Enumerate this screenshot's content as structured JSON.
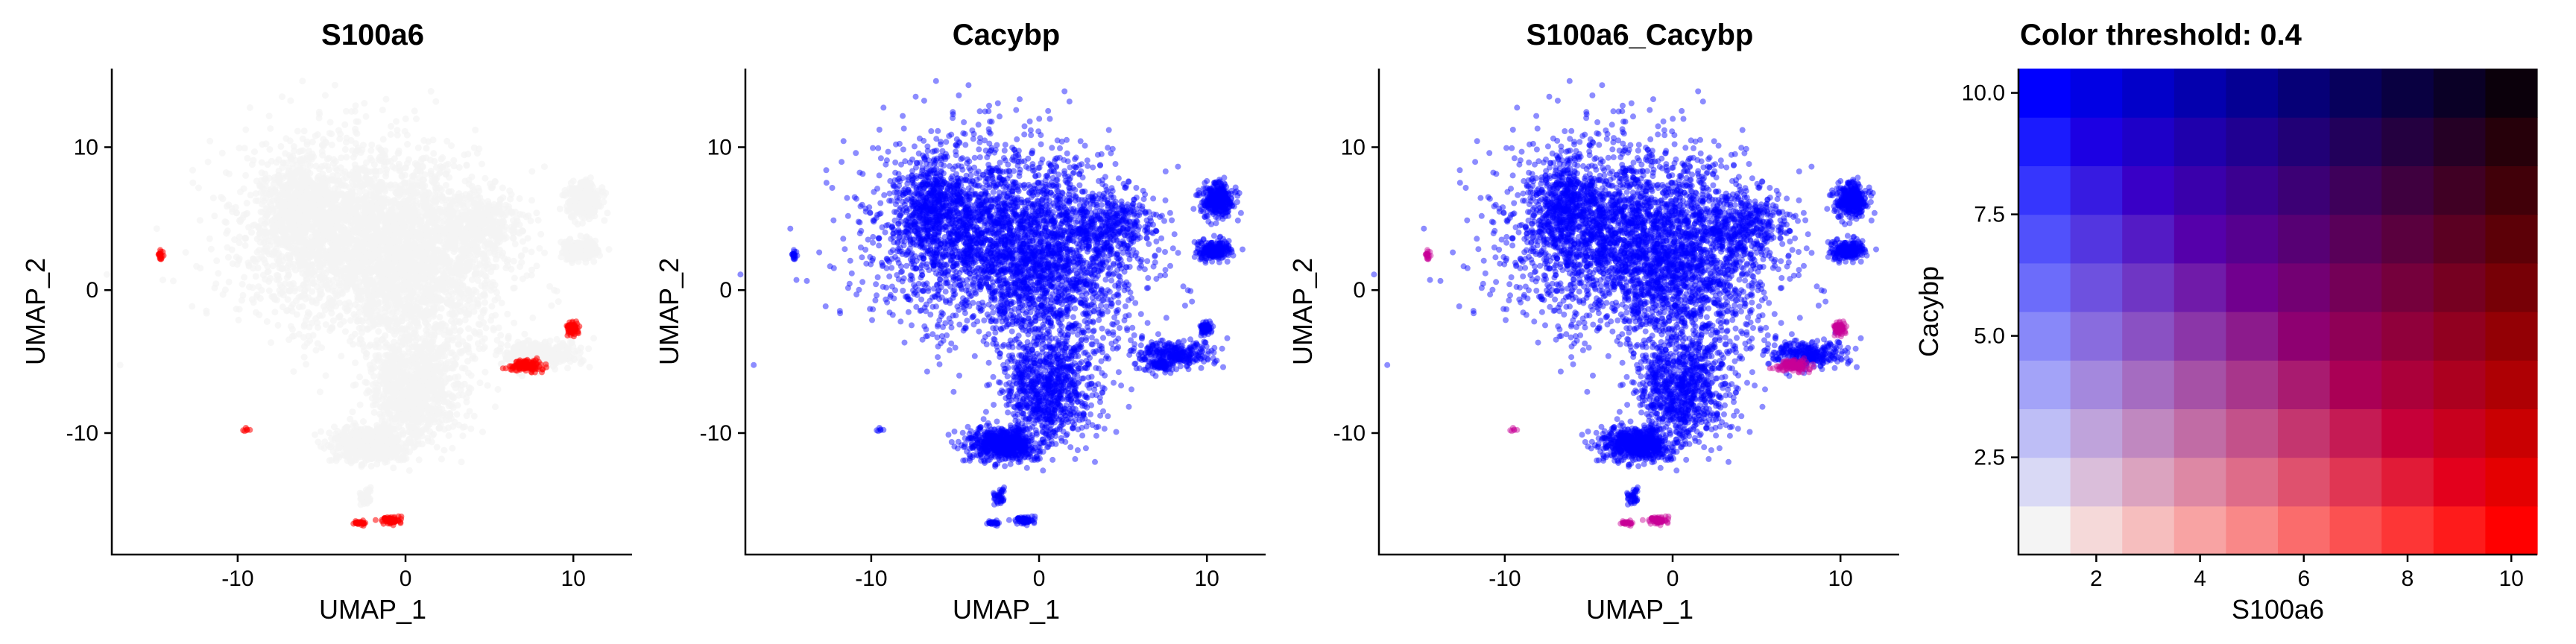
{
  "chart_data": [
    {
      "type": "scatter",
      "title": "S100a6",
      "xlabel": "UMAP_1",
      "ylabel": "UMAP_2",
      "xticks": [
        -10,
        0,
        10
      ],
      "yticks": [
        -10,
        0,
        10
      ],
      "xlim": [
        -17.5,
        13.5
      ],
      "ylim": [
        -18.5,
        15.5
      ],
      "colors": {
        "low": "#f4f4f4",
        "high": "#ff0000",
        "blend": "#b000b0"
      },
      "color_by": "S100a6",
      "clusters": [
        {
          "cx": -3.0,
          "cy": 4.0,
          "sx": 6.5,
          "sy": 6.0,
          "n": 2200,
          "a": 0.05,
          "b": 0
        },
        {
          "cx": 0.5,
          "cy": 1.5,
          "sx": 5.0,
          "sy": 5.5,
          "n": 1400,
          "a": 0.05,
          "b": 0
        },
        {
          "cx": 0.5,
          "cy": -7.0,
          "sx": 2.5,
          "sy": 3.5,
          "n": 900,
          "a": 0.05,
          "b": 0
        },
        {
          "cx": -2.2,
          "cy": -10.8,
          "sx": 1.8,
          "sy": 1.0,
          "n": 700,
          "a": 0.05,
          "b": 0
        },
        {
          "cx": -6.5,
          "cy": 6.0,
          "sx": 1.8,
          "sy": 3.0,
          "n": 450,
          "a": 0.05,
          "b": 0
        },
        {
          "cx": 4.5,
          "cy": 4.5,
          "sx": 2.5,
          "sy": 2.0,
          "n": 300,
          "a": 0.05,
          "b": 0
        },
        {
          "cx": 8.0,
          "cy": -4.5,
          "sx": 2.2,
          "sy": 0.9,
          "n": 300,
          "a": 0.1,
          "b": 0
        },
        {
          "cx": 10.6,
          "cy": 6.3,
          "sx": 0.9,
          "sy": 1.1,
          "n": 350,
          "a": 0.05,
          "b": 0
        },
        {
          "cx": 10.4,
          "cy": 2.8,
          "sx": 0.9,
          "sy": 0.6,
          "n": 250,
          "a": 0.05,
          "b": 0
        },
        {
          "cx": 7.2,
          "cy": -5.3,
          "sx": 0.8,
          "sy": 0.4,
          "n": 130,
          "a": 1.0,
          "b": 0.25
        },
        {
          "cx": 9.9,
          "cy": -2.7,
          "sx": 0.35,
          "sy": 0.35,
          "n": 90,
          "a": 1.0,
          "b": 0.3
        },
        {
          "cx": -0.9,
          "cy": -16.1,
          "sx": 0.5,
          "sy": 0.2,
          "n": 70,
          "a": 1.0,
          "b": 0.2
        },
        {
          "cx": -2.8,
          "cy": -16.3,
          "sx": 0.5,
          "sy": 0.15,
          "n": 25,
          "a": 0.9,
          "b": 0.2
        },
        {
          "cx": -14.6,
          "cy": 2.4,
          "sx": 0.2,
          "sy": 0.3,
          "n": 20,
          "a": 0.8,
          "b": 0.1
        },
        {
          "cx": -2.4,
          "cy": -14.5,
          "sx": 0.4,
          "sy": 0.5,
          "n": 40,
          "a": 0.05,
          "b": 0
        },
        {
          "cx": -9.5,
          "cy": -9.8,
          "sx": 0.2,
          "sy": 0.2,
          "n": 6,
          "a": 0.8,
          "b": 0.1
        }
      ]
    },
    {
      "type": "scatter",
      "title": "Cacybp",
      "xlabel": "UMAP_1",
      "ylabel": "UMAP_2",
      "xticks": [
        -10,
        0,
        10
      ],
      "yticks": [
        -10,
        0,
        10
      ],
      "xlim": [
        -17.5,
        13.5
      ],
      "ylim": [
        -18.5,
        15.5
      ],
      "color_by": "Cacybp"
    },
    {
      "type": "scatter",
      "title": "S100a6_Cacybp",
      "xlabel": "UMAP_1",
      "ylabel": "UMAP_2",
      "xticks": [
        -10,
        0,
        10
      ],
      "yticks": [
        -10,
        0,
        10
      ],
      "xlim": [
        -17.5,
        13.5
      ],
      "ylim": [
        -18.5,
        15.5
      ],
      "color_by": "blend"
    },
    {
      "type": "heatmap",
      "title": "Color threshold: 0.4",
      "xlabel": "S100a6",
      "ylabel": "Cacybp",
      "x": [
        1,
        2,
        3,
        4,
        5,
        6,
        7,
        8,
        9,
        10
      ],
      "y": [
        1,
        2,
        3,
        4,
        5,
        6,
        7,
        8,
        9,
        10
      ],
      "xticks": [
        2,
        4,
        6,
        8,
        10
      ],
      "yticks": [
        2.5,
        5.0,
        7.5,
        10.0
      ],
      "ytick_labels": [
        "2.5",
        "5.0",
        "7.5",
        "10.0"
      ],
      "xlim": [
        0.5,
        10.5
      ],
      "ylim": [
        0.5,
        10.5
      ],
      "color_low": "#f4f4f4",
      "color_x": "#ff0000",
      "color_y": "#0000ff"
    }
  ]
}
